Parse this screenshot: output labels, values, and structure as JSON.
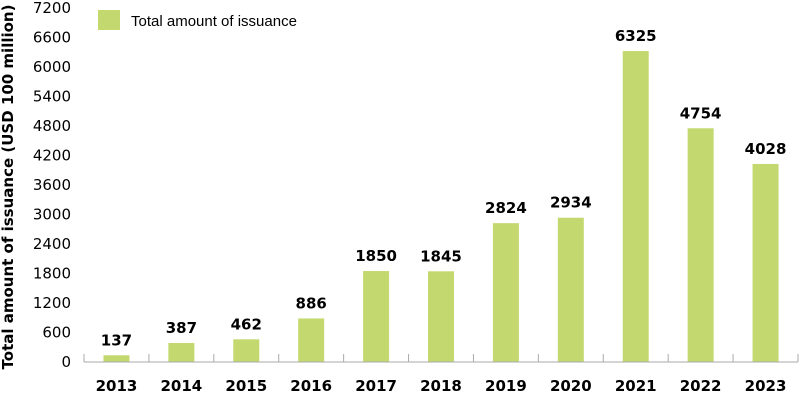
{
  "chart_data": {
    "type": "bar",
    "categories": [
      "2013",
      "2014",
      "2015",
      "2016",
      "2017",
      "2018",
      "2019",
      "2020",
      "2021",
      "2022",
      "2023"
    ],
    "series": [
      {
        "name": "Total amount of issuance",
        "values": [
          137,
          387,
          462,
          886,
          1850,
          1845,
          2824,
          2934,
          6325,
          4754,
          4028
        ]
      }
    ],
    "data_labels": [
      "137",
      "387",
      "462",
      "886",
      "1850",
      "1845",
      "2824",
      "2934",
      "6325",
      "4754",
      "4028"
    ],
    "xlabel": "",
    "ylabel": "Total amount of issuance (USD 100 million)",
    "ylim": [
      0,
      7200
    ],
    "yticks": [
      0,
      600,
      1200,
      1800,
      2400,
      3000,
      3600,
      4200,
      4800,
      5400,
      6000,
      6600,
      7200
    ],
    "ytick_labels": [
      "0",
      "600",
      "1200",
      "1800",
      "2400",
      "3000",
      "3600",
      "4200",
      "4800",
      "5400",
      "6000",
      "6600",
      "7200"
    ],
    "grid": false,
    "legend_position": "top-left",
    "bar_color": "#c3d96f",
    "axis_color": "#aaaaaa"
  }
}
